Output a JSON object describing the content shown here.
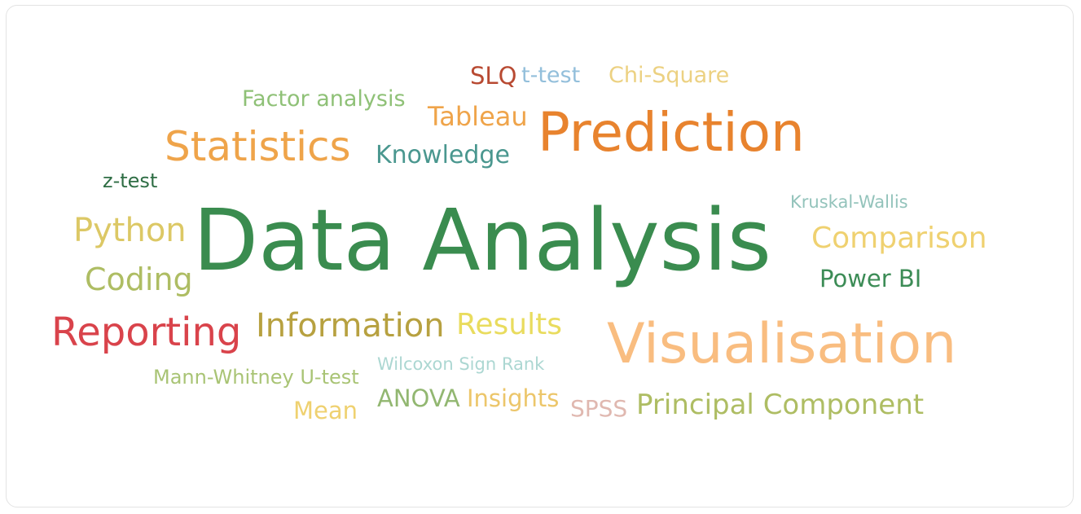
{
  "chart_data": {
    "type": "wordcloud",
    "words": [
      {
        "text": "Data Analysis",
        "color": "#3a8c4f"
      },
      {
        "text": "Visualisation",
        "color": "#f9bd80"
      },
      {
        "text": "Prediction",
        "color": "#e8832e"
      },
      {
        "text": "Statistics",
        "color": "#efa44a"
      },
      {
        "text": "Reporting",
        "color": "#d9434b"
      },
      {
        "text": "Information",
        "color": "#b7a140"
      },
      {
        "text": "Python",
        "color": "#dcc865"
      },
      {
        "text": "Coding",
        "color": "#aebd63"
      },
      {
        "text": "Results",
        "color": "#e9dc5e"
      },
      {
        "text": "Comparison",
        "color": "#efd170"
      },
      {
        "text": "Principal Component",
        "color": "#aebd63"
      },
      {
        "text": "Knowledge",
        "color": "#4a978f"
      },
      {
        "text": "Tableau",
        "color": "#efa44a"
      },
      {
        "text": "Power BI",
        "color": "#3c8c56"
      },
      {
        "text": "Factor analysis",
        "color": "#8fc177"
      },
      {
        "text": "Chi-Square",
        "color": "#ecd182"
      },
      {
        "text": "SLQ",
        "color": "#b84a32"
      },
      {
        "text": "t-test",
        "color": "#93bfdb"
      },
      {
        "text": "z-test",
        "color": "#2f6e45"
      },
      {
        "text": "Kruskal-Wallis",
        "color": "#93c3bb"
      },
      {
        "text": "Mann-Whitney U-test",
        "color": "#a9c475"
      },
      {
        "text": "Wilcoxon Sign Rank",
        "color": "#acd7d2"
      },
      {
        "text": "Mean",
        "color": "#efd170"
      },
      {
        "text": "ANOVA",
        "color": "#92b771"
      },
      {
        "text": "Insights",
        "color": "#ecc66a"
      },
      {
        "text": "SPSS",
        "color": "#e0b8b0"
      }
    ]
  }
}
